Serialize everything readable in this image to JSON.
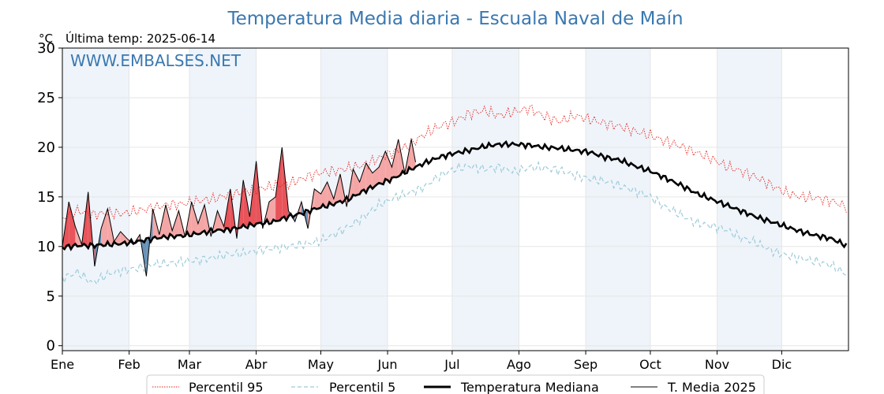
{
  "chart_data": {
    "type": "line",
    "title": "Temperatura Media diaria - Escuala Naval de Maín",
    "unit_label": "°C",
    "last_temp_label": "Última temp: 2025-06-14",
    "watermark": "WWW.EMBALSES.NET",
    "xlabel": "",
    "ylabel": "",
    "ylim": [
      -0.5,
      30
    ],
    "xlim": [
      1,
      366
    ],
    "yticks": [
      0,
      5,
      10,
      15,
      20,
      25,
      30
    ],
    "month_ticks": [
      {
        "label": "Ene",
        "day": 1
      },
      {
        "label": "Feb",
        "day": 32
      },
      {
        "label": "Mar",
        "day": 60
      },
      {
        "label": "Abr",
        "day": 91
      },
      {
        "label": "May",
        "day": 121
      },
      {
        "label": "Jun",
        "day": 152
      },
      {
        "label": "Jul",
        "day": 182
      },
      {
        "label": "Ago",
        "day": 213
      },
      {
        "label": "Sep",
        "day": 244
      },
      {
        "label": "Oct",
        "day": 274
      },
      {
        "label": "Nov",
        "day": 305
      },
      {
        "label": "Dic",
        "day": 335
      }
    ],
    "grid": true,
    "legend_position": "bottom-center",
    "colors": {
      "title": "#3a78b0",
      "p95": "#e8201c",
      "p5": "#9dcbd9",
      "median": "#000000",
      "current": "#000000",
      "above_fill": "#f4a6a6",
      "above_fill_strong": "#e8545a",
      "below_fill": "#6a93b8",
      "month_band": "#eef4fa"
    },
    "series": [
      {
        "name": "Percentil 95",
        "style": "dotted-red",
        "x": [
          1,
          8,
          15,
          22,
          29,
          36,
          43,
          50,
          57,
          64,
          71,
          78,
          85,
          92,
          99,
          106,
          113,
          120,
          127,
          134,
          141,
          148,
          155,
          162,
          169,
          176,
          183,
          190,
          197,
          204,
          211,
          218,
          225,
          232,
          239,
          246,
          253,
          260,
          267,
          274,
          281,
          288,
          295,
          302,
          309,
          316,
          323,
          330,
          337,
          344,
          351,
          358,
          365
        ],
        "values": [
          12.8,
          13.6,
          13.2,
          13.4,
          13.3,
          13.6,
          13.9,
          14.2,
          14.3,
          14.6,
          14.8,
          15.2,
          15.5,
          15.8,
          16.1,
          16.3,
          16.9,
          17.4,
          17.6,
          17.9,
          18.2,
          18.9,
          19.5,
          20.2,
          21.3,
          22.1,
          22.6,
          23.4,
          23.7,
          23.2,
          23.6,
          23.9,
          23.1,
          22.6,
          23.2,
          22.8,
          22.4,
          22.1,
          21.6,
          21.2,
          20.6,
          20.1,
          19.5,
          18.9,
          18.1,
          17.6,
          17.0,
          16.2,
          15.4,
          15.0,
          14.9,
          14.6,
          14.0
        ]
      },
      {
        "name": "Percentil 5",
        "style": "dashed-lightblue",
        "x": [
          1,
          8,
          15,
          22,
          29,
          36,
          43,
          50,
          57,
          64,
          71,
          78,
          85,
          92,
          99,
          106,
          113,
          120,
          127,
          134,
          141,
          148,
          155,
          162,
          169,
          176,
          183,
          190,
          197,
          204,
          211,
          218,
          225,
          232,
          239,
          246,
          253,
          260,
          267,
          274,
          281,
          288,
          295,
          302,
          309,
          316,
          323,
          330,
          337,
          344,
          351,
          358,
          365
        ],
        "values": [
          6.8,
          7.4,
          6.3,
          7.2,
          7.6,
          7.8,
          8.2,
          8.3,
          8.5,
          8.6,
          8.9,
          9.2,
          9.3,
          9.6,
          9.8,
          10.0,
          10.2,
          10.5,
          11.2,
          12.0,
          13.0,
          14.2,
          14.9,
          15.4,
          16.0,
          17.1,
          17.8,
          18.1,
          17.8,
          18.0,
          17.5,
          18.0,
          17.9,
          17.7,
          17.2,
          16.8,
          16.6,
          16.1,
          15.6,
          15.0,
          14.0,
          13.2,
          12.4,
          12.1,
          11.7,
          10.9,
          10.4,
          9.6,
          9.1,
          8.8,
          8.5,
          8.1,
          7.2
        ]
      },
      {
        "name": "Temperatura Mediana",
        "style": "thick-black",
        "x": [
          1,
          8,
          15,
          22,
          29,
          36,
          43,
          50,
          57,
          64,
          71,
          78,
          85,
          92,
          99,
          106,
          113,
          120,
          127,
          134,
          141,
          148,
          155,
          162,
          169,
          176,
          183,
          190,
          197,
          204,
          211,
          218,
          225,
          232,
          239,
          246,
          253,
          260,
          267,
          274,
          281,
          288,
          295,
          302,
          309,
          316,
          323,
          330,
          337,
          344,
          351,
          358,
          365
        ],
        "values": [
          9.9,
          10.1,
          10.1,
          10.2,
          10.3,
          10.5,
          10.8,
          11.0,
          11.1,
          11.3,
          11.6,
          11.7,
          12.0,
          12.3,
          12.5,
          13.0,
          13.4,
          13.9,
          14.3,
          14.8,
          15.6,
          16.3,
          16.9,
          17.7,
          18.4,
          19.0,
          19.4,
          19.7,
          20.1,
          20.3,
          20.3,
          20.2,
          20.0,
          19.9,
          19.7,
          19.5,
          19.0,
          18.7,
          18.1,
          17.6,
          16.9,
          16.2,
          15.4,
          14.8,
          14.2,
          13.6,
          13.0,
          12.5,
          12.0,
          11.5,
          11.1,
          10.8,
          10.1
        ]
      },
      {
        "name": "T. Media 2025",
        "style": "thin-black",
        "x": [
          1,
          4,
          7,
          10,
          13,
          16,
          19,
          22,
          25,
          28,
          31,
          34,
          37,
          40,
          43,
          46,
          49,
          52,
          55,
          58,
          61,
          64,
          67,
          70,
          73,
          76,
          79,
          82,
          85,
          88,
          91,
          94,
          97,
          100,
          103,
          106,
          109,
          112,
          115,
          118,
          121,
          124,
          127,
          130,
          133,
          136,
          139,
          142,
          145,
          148,
          151,
          154,
          157,
          160,
          163,
          165
        ],
        "values": [
          10.0,
          14.5,
          12.0,
          10.2,
          15.5,
          8.0,
          11.8,
          13.8,
          10.5,
          11.5,
          10.8,
          10.2,
          11.2,
          7.0,
          13.8,
          11.2,
          14.2,
          11.6,
          13.6,
          11.0,
          14.5,
          12.3,
          14.2,
          11.0,
          13.6,
          12.0,
          15.8,
          10.8,
          16.7,
          13.0,
          18.6,
          11.8,
          14.5,
          15.0,
          20.0,
          13.6,
          12.5,
          14.5,
          11.8,
          15.8,
          15.3,
          16.5,
          14.8,
          17.3,
          14.0,
          17.8,
          16.5,
          18.4,
          17.4,
          18.0,
          19.6,
          18.0,
          20.8,
          17.4,
          20.8,
          18.5
        ]
      }
    ]
  }
}
